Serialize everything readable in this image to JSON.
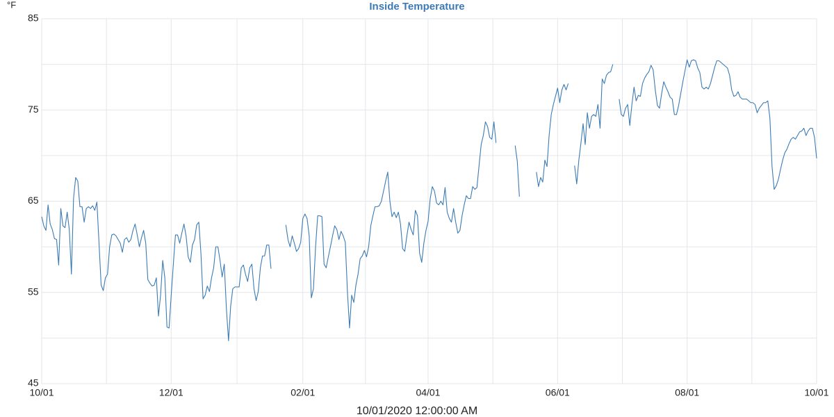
{
  "chart_data": {
    "type": "line",
    "title": "Inside Temperature",
    "y_label": "°F",
    "x_label": "10/01/2020 12:00:00 AM",
    "color": "#3b7bb4",
    "grid": true,
    "ylim": [
      45,
      85
    ],
    "yticks": [
      45,
      55,
      65,
      75,
      85
    ],
    "categories": [
      "10/01",
      null,
      null,
      null,
      null,
      null,
      null,
      null,
      null,
      null,
      null,
      null,
      null,
      null,
      null,
      null,
      null,
      null,
      null,
      null,
      null,
      null,
      null,
      null,
      null,
      null,
      null,
      null,
      null,
      null,
      null,
      null,
      null,
      null,
      null,
      null,
      null,
      null,
      null,
      null,
      null,
      null,
      null,
      null,
      null,
      null,
      null,
      null,
      null,
      null,
      null,
      null,
      null,
      null,
      null,
      null,
      null,
      null,
      null,
      null,
      null,
      "12/01",
      null,
      null,
      null,
      null,
      null,
      null,
      null,
      null,
      null,
      null,
      null,
      null,
      null,
      null,
      null,
      null,
      null,
      null,
      null,
      null,
      null,
      null,
      null,
      null,
      null,
      null,
      null,
      null,
      null,
      null,
      null,
      null,
      null,
      null,
      null,
      null,
      null,
      null,
      null,
      null,
      null,
      null,
      null,
      null,
      null,
      null,
      null,
      null,
      null,
      null,
      null,
      null,
      null,
      null,
      null,
      null,
      null,
      null,
      null,
      null,
      null,
      "02/01",
      null,
      null,
      null,
      null,
      null,
      null,
      null,
      null,
      null,
      null,
      null,
      null,
      null,
      null,
      null,
      null,
      null,
      null,
      null,
      null,
      null,
      null,
      null,
      null,
      null,
      null,
      null,
      null,
      null,
      null,
      null,
      null,
      null,
      null,
      null,
      null,
      null,
      null,
      null,
      null,
      null,
      null,
      null,
      null,
      null,
      null,
      null,
      null,
      null,
      null,
      null,
      null,
      null,
      null,
      null,
      null,
      null,
      null,
      "04/01",
      null,
      null,
      null,
      null,
      null,
      null,
      null,
      null,
      null,
      null,
      null,
      null,
      null,
      null,
      null,
      null,
      null,
      null,
      null,
      null,
      null,
      null,
      null,
      null,
      null,
      null,
      null,
      null,
      null,
      null,
      null,
      null,
      null,
      null,
      null,
      null,
      null,
      null,
      null,
      null,
      null,
      null,
      null,
      null,
      null,
      null,
      null,
      null,
      null,
      null,
      null,
      null,
      null,
      null,
      null,
      null,
      null,
      null,
      null,
      null,
      "06/01",
      null,
      null,
      null,
      null,
      null,
      null,
      null,
      null,
      null,
      null,
      null,
      null,
      null,
      null,
      null,
      null,
      null,
      null,
      null,
      null,
      null,
      null,
      null,
      null,
      null,
      null,
      null,
      null,
      null,
      null,
      null,
      null,
      null,
      null,
      null,
      null,
      null,
      null,
      null,
      null,
      null,
      null,
      null,
      null,
      null,
      null,
      null,
      null,
      null,
      null,
      null,
      null,
      null,
      null,
      null,
      null,
      null,
      null,
      null,
      null,
      "08/01",
      null,
      null,
      null,
      null,
      null,
      null,
      null,
      null,
      null,
      null,
      null,
      null,
      null,
      null,
      null,
      null,
      null,
      null,
      null,
      null,
      null,
      null,
      null,
      null,
      null,
      null,
      null,
      null,
      null,
      null,
      null,
      null,
      null,
      null,
      null,
      null,
      null,
      null,
      null,
      null,
      null,
      null,
      null,
      null,
      null,
      null,
      null,
      null,
      null,
      null,
      null,
      null,
      null,
      null,
      null,
      null,
      null,
      null,
      null,
      null,
      "10/01"
    ],
    "values": [
      63.3,
      62.3,
      61.8,
      64.6,
      62.5,
      61.9,
      60.9,
      60.8,
      58.0,
      64.2,
      62.3,
      62.1,
      63.8,
      61.9,
      57.0,
      65.3,
      67.6,
      67.2,
      64.4,
      64.4,
      62.7,
      64.2,
      64.4,
      64.2,
      64.5,
      64.0,
      64.9,
      60.4,
      55.8,
      55.2,
      56.6,
      57.0,
      60.0,
      61.3,
      61.4,
      61.2,
      60.8,
      60.4,
      59.4,
      60.8,
      61.0,
      60.5,
      60.8,
      61.8,
      62.5,
      61.3,
      60.0,
      61.0,
      61.8,
      60.4,
      56.4,
      56.0,
      55.7,
      55.8,
      56.6,
      52.4,
      54.7,
      58.5,
      56.6,
      51.2,
      51.1,
      54.7,
      58.1,
      61.3,
      61.3,
      60.4,
      61.5,
      62.5,
      61.2,
      58.9,
      58.3,
      60.2,
      60.8,
      62.4,
      62.7,
      59.3,
      54.3,
      54.7,
      55.7,
      55.1,
      56.6,
      57.7,
      60.0,
      60.0,
      58.5,
      56.7,
      58.1,
      53.2,
      49.7,
      53.5,
      55.4,
      55.6,
      55.6,
      55.6,
      57.7,
      58.0,
      57.0,
      56.2,
      57.7,
      58.1,
      55.4,
      54.1,
      55.1,
      57.7,
      59.0,
      59.0,
      60.2,
      60.2,
      57.6,
      null,
      null,
      null,
      null,
      null,
      null,
      62.4,
      60.8,
      60.0,
      61.2,
      60.4,
      59.5,
      59.8,
      60.5,
      63.1,
      63.6,
      63.1,
      61.2,
      54.4,
      55.4,
      60.0,
      63.4,
      63.4,
      63.3,
      58.1,
      57.7,
      58.9,
      60.0,
      61.2,
      62.3,
      61.9,
      60.8,
      61.7,
      61.2,
      60.5,
      55.1,
      51.1,
      54.7,
      53.9,
      55.8,
      57.0,
      58.7,
      59.0,
      59.6,
      58.9,
      60.0,
      62.3,
      63.4,
      64.4,
      64.4,
      64.5,
      65.0,
      66.1,
      67.2,
      68.2,
      65.0,
      63.3,
      63.8,
      63.2,
      63.8,
      62.5,
      59.8,
      59.5,
      61.2,
      62.7,
      61.9,
      61.3,
      64.0,
      63.4,
      59.3,
      58.3,
      60.4,
      61.8,
      62.8,
      65.3,
      66.6,
      66.1,
      64.8,
      64.6,
      65.0,
      64.6,
      66.5,
      63.8,
      63.1,
      62.7,
      64.2,
      62.7,
      61.5,
      61.8,
      63.4,
      64.6,
      65.6,
      65.3,
      65.3,
      66.6,
      66.3,
      66.5,
      68.9,
      71.2,
      72.2,
      73.7,
      73.2,
      72.0,
      71.8,
      73.7,
      71.4,
      null,
      null,
      null,
      null,
      null,
      null,
      null,
      null,
      71.1,
      69.4,
      65.5,
      null,
      null,
      null,
      null,
      null,
      null,
      null,
      68.2,
      66.6,
      67.6,
      67.1,
      69.5,
      68.8,
      72.2,
      74.5,
      75.6,
      76.5,
      77.4,
      75.8,
      77.2,
      77.8,
      77.2,
      77.9,
      null,
      null,
      68.9,
      66.9,
      69.5,
      71.4,
      73.5,
      71.2,
      74.7,
      73.0,
      74.3,
      74.5,
      74.3,
      75.6,
      73.0,
      78.4,
      77.9,
      78.8,
      79.1,
      79.2,
      80.0,
      null,
      null,
      76.2,
      74.5,
      74.3,
      75.2,
      75.6,
      73.3,
      75.6,
      77.5,
      76.0,
      76.6,
      76.5,
      77.9,
      78.5,
      78.9,
      79.2,
      79.9,
      79.4,
      77.2,
      75.5,
      75.2,
      76.8,
      78.1,
      77.5,
      77.0,
      76.4,
      76.2,
      74.5,
      74.5,
      75.5,
      76.8,
      78.1,
      79.3,
      80.5,
      79.7,
      80.4,
      80.5,
      80.4,
      79.6,
      79.1,
      77.5,
      77.3,
      77.5,
      77.3,
      77.9,
      78.8,
      79.7,
      80.4,
      80.4,
      80.2,
      80.0,
      79.8,
      79.6,
      78.8,
      77.2,
      76.5,
      76.6,
      77.0,
      76.4,
      76.2,
      76.2,
      76.2,
      76.0,
      75.8,
      75.8,
      75.6,
      74.7,
      75.2,
      75.5,
      75.8,
      75.8,
      76.0,
      74.1,
      68.8,
      66.3,
      66.7,
      67.4,
      68.5,
      69.5,
      70.3,
      70.7,
      71.3,
      71.8,
      72.0,
      71.8,
      72.2,
      72.6,
      72.7,
      73.0,
      72.2,
      72.7,
      73.0,
      73.0,
      72.0,
      69.7
    ]
  }
}
